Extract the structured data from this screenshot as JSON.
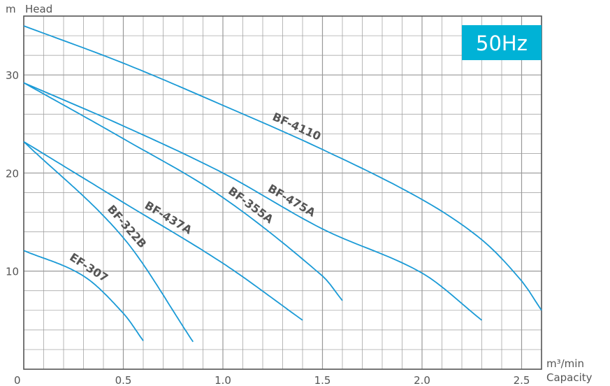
{
  "chart_data": {
    "type": "line",
    "title": "",
    "badge": "50Hz",
    "y_unit": "m",
    "ylabel": "Head",
    "x_unit": "m³/min",
    "xlabel": "Capacity",
    "xlim": [
      0,
      2.6
    ],
    "ylim": [
      0,
      36
    ],
    "grid": true,
    "x_ticks": [
      0,
      0.5,
      1.0,
      1.5,
      2.0,
      2.5
    ],
    "x_tick_labels": [
      "0",
      "0.5",
      "1.0",
      "1.5",
      "2.0",
      "2.5"
    ],
    "y_ticks": [
      10,
      20,
      30
    ],
    "y_tick_labels": [
      "10",
      "20",
      "30"
    ],
    "colors": {
      "curve": "#1a9ad6",
      "badge": "#00b2d6",
      "grid": "#999999",
      "text": "#555555"
    },
    "series": [
      {
        "name": "BF-4110",
        "label_x": 1.35,
        "points": [
          [
            0,
            35
          ],
          [
            0.5,
            31.2
          ],
          [
            1.0,
            26.9
          ],
          [
            1.5,
            22.4
          ],
          [
            2.0,
            17.3
          ],
          [
            2.3,
            13.2
          ],
          [
            2.5,
            9
          ],
          [
            2.6,
            6
          ]
        ]
      },
      {
        "name": "BF-475A",
        "label_x": 1.32,
        "points": [
          [
            0,
            29.2
          ],
          [
            0.5,
            24.8
          ],
          [
            1.0,
            20.0
          ],
          [
            1.5,
            14.3
          ],
          [
            2.0,
            9.8
          ],
          [
            2.3,
            5
          ]
        ]
      },
      {
        "name": "BF-355A",
        "label_x": 1.11,
        "points": [
          [
            0,
            29.2
          ],
          [
            0.5,
            23.5
          ],
          [
            1.0,
            17.5
          ],
          [
            1.5,
            9.5
          ],
          [
            1.6,
            7
          ]
        ]
      },
      {
        "name": "BF-437A",
        "label_x": 0.7,
        "points": [
          [
            0,
            23.2
          ],
          [
            0.5,
            17
          ],
          [
            1.0,
            10.8
          ],
          [
            1.4,
            5
          ]
        ]
      },
      {
        "name": "BF-322B",
        "label_x": 0.48,
        "points": [
          [
            0,
            23.2
          ],
          [
            0.5,
            13.4
          ],
          [
            0.85,
            2.8
          ]
        ]
      },
      {
        "name": "EF-307",
        "label_x": 0.3,
        "points": [
          [
            0,
            12.1
          ],
          [
            0.3,
            9.5
          ],
          [
            0.5,
            5.7
          ],
          [
            0.6,
            2.9
          ]
        ]
      }
    ]
  }
}
